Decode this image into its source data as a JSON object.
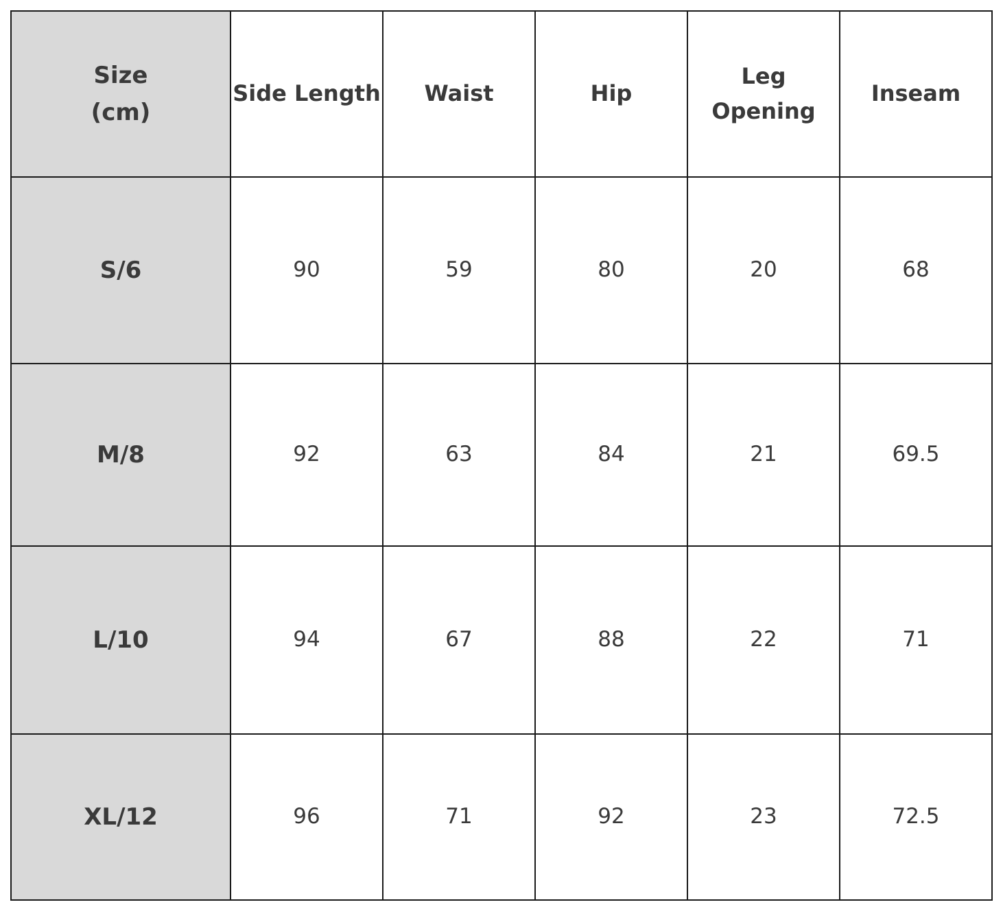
{
  "table": {
    "header": [
      "Size\n(cm)",
      "Side Length",
      "Waist",
      "Hip",
      "Leg Opening",
      "Inseam"
    ],
    "rows": [
      [
        "S/6",
        90,
        59,
        80,
        20,
        68
      ],
      [
        "M/8",
        92,
        63,
        84,
        21,
        69.5
      ],
      [
        "L/10",
        94,
        67,
        88,
        22,
        71
      ],
      [
        "XL/12",
        96,
        71,
        92,
        23,
        72.5
      ]
    ]
  }
}
